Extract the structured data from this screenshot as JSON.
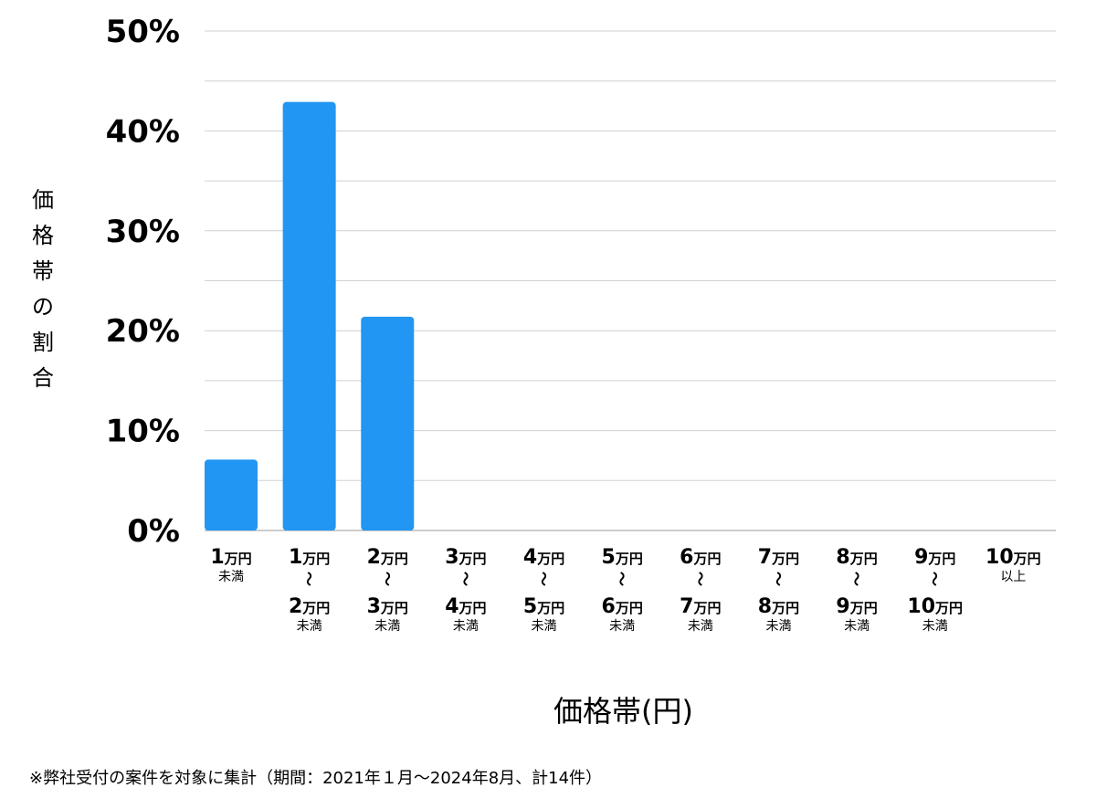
{
  "chart_data": {
    "type": "bar",
    "ylabel": "価格帯の割合",
    "xlabel": "価格帯(円)",
    "ylim": [
      0,
      50
    ],
    "yticks": [
      "0%",
      "10%",
      "20%",
      "30%",
      "40%",
      "50%"
    ],
    "grid": true,
    "categories": [
      {
        "top": "1",
        "top_unit": "万円",
        "bottom": "",
        "bottom_unit": "",
        "suffix": "未満",
        "tilde": ""
      },
      {
        "top": "1",
        "top_unit": "万円",
        "bottom": "2",
        "bottom_unit": "万円",
        "suffix": "未満",
        "tilde": "〜"
      },
      {
        "top": "2",
        "top_unit": "万円",
        "bottom": "3",
        "bottom_unit": "万円",
        "suffix": "未満",
        "tilde": "〜"
      },
      {
        "top": "3",
        "top_unit": "万円",
        "bottom": "4",
        "bottom_unit": "万円",
        "suffix": "未満",
        "tilde": "〜"
      },
      {
        "top": "4",
        "top_unit": "万円",
        "bottom": "5",
        "bottom_unit": "万円",
        "suffix": "未満",
        "tilde": "〜"
      },
      {
        "top": "5",
        "top_unit": "万円",
        "bottom": "6",
        "bottom_unit": "万円",
        "suffix": "未満",
        "tilde": "〜"
      },
      {
        "top": "6",
        "top_unit": "万円",
        "bottom": "7",
        "bottom_unit": "万円",
        "suffix": "未満",
        "tilde": "〜"
      },
      {
        "top": "7",
        "top_unit": "万円",
        "bottom": "8",
        "bottom_unit": "万円",
        "suffix": "未満",
        "tilde": "〜"
      },
      {
        "top": "8",
        "top_unit": "万円",
        "bottom": "9",
        "bottom_unit": "万円",
        "suffix": "未満",
        "tilde": "〜"
      },
      {
        "top": "9",
        "top_unit": "万円",
        "bottom": "10",
        "bottom_unit": "万円",
        "suffix": "未満",
        "tilde": "〜"
      },
      {
        "top": "10",
        "top_unit": "万円",
        "bottom": "",
        "bottom_unit": "",
        "suffix": "以上",
        "tilde": ""
      }
    ],
    "values": [
      7.1,
      42.9,
      21.4,
      0,
      0,
      0,
      0,
      0,
      0,
      0,
      0
    ],
    "bar_color": "#2196F3",
    "grid_color": "#d0d0d0"
  },
  "footnote": "※弊社受付の案件を対象に集計（期間：2021年１月〜2024年8月、計14件）"
}
